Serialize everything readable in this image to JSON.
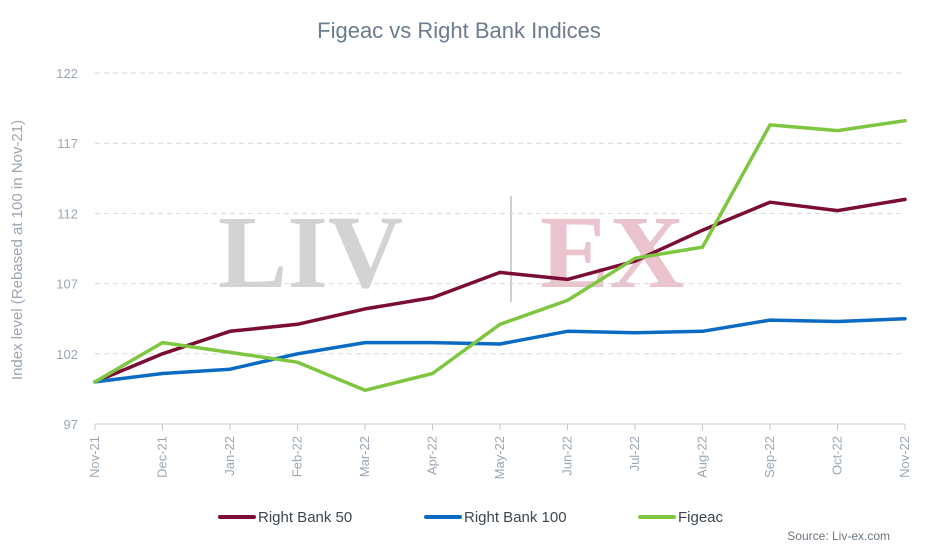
{
  "chart_data": {
    "type": "line",
    "title": "Figeac vs Right Bank Indices",
    "ylabel": "Index level (Rebased at 100 in Nov-21)",
    "xlabel": "",
    "x": [
      "Nov-21",
      "Dec-21",
      "Jan-22",
      "Feb-22",
      "Mar-22",
      "Apr-22",
      "May-22",
      "Jun-22",
      "Jul-22",
      "Aug-22",
      "Sep-22",
      "Oct-22",
      "Nov-22"
    ],
    "ylim": [
      97,
      122
    ],
    "yticks": [
      "97",
      "102",
      "107",
      "112",
      "117",
      "122"
    ],
    "grid": true,
    "legend_position": "bottom",
    "series": [
      {
        "name": "Right Bank 50",
        "color": "#7b0c36",
        "values": [
          100.0,
          102.0,
          103.6,
          104.1,
          105.2,
          106.0,
          107.8,
          107.3,
          108.6,
          110.8,
          112.8,
          112.2,
          113.0
        ]
      },
      {
        "name": "Right Bank 100",
        "color": "#0a6bc5",
        "values": [
          100.0,
          100.6,
          100.9,
          102.0,
          102.8,
          102.8,
          102.7,
          103.6,
          103.5,
          103.6,
          104.4,
          104.3,
          104.5
        ]
      },
      {
        "name": "Figeac",
        "color": "#7ec63f",
        "values": [
          100.0,
          102.8,
          102.1,
          101.4,
          99.4,
          100.6,
          104.1,
          105.8,
          108.8,
          109.6,
          118.3,
          117.9,
          118.6
        ]
      }
    ]
  },
  "watermark": {
    "left": "LIV",
    "right": "EX"
  },
  "source": "Source: Liv-ex.com"
}
